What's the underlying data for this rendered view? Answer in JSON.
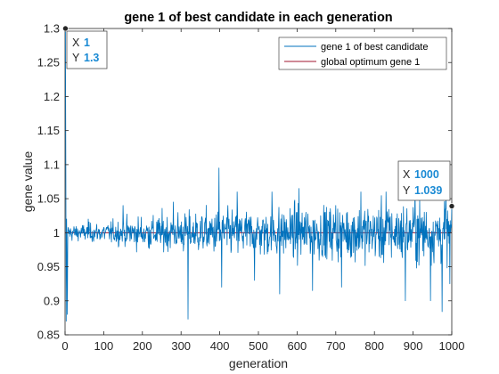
{
  "chart_data": {
    "type": "line",
    "title": "gene 1 of best candidate in each generation",
    "xlabel": "generation",
    "ylabel": "gene value",
    "xlim": [
      0,
      1000
    ],
    "ylim": [
      0.85,
      1.3
    ],
    "grid": false,
    "legend_position": "top-right",
    "x_ticks": [
      "0",
      "100",
      "200",
      "300",
      "400",
      "500",
      "600",
      "700",
      "800",
      "900",
      "1000"
    ],
    "y_ticks": [
      "0.85",
      "0.9",
      "0.95",
      "1",
      "1.05",
      "1.1",
      "1.15",
      "1.2",
      "1.25",
      "1.3"
    ],
    "series": [
      {
        "name": "gene 1 of best candidate",
        "color": "#0072bd",
        "x_range": [
          1,
          1000
        ],
        "noise_profile": {
          "start_transient": [
            1.3,
            1.1,
            0.87,
            1.02,
            0.96,
            0.88,
            1.0
          ],
          "spread_by_generation": [
            [
              0,
              0.012
            ],
            [
              100,
              0.015
            ],
            [
              200,
              0.025
            ],
            [
              300,
              0.03
            ],
            [
              400,
              0.035
            ],
            [
              500,
              0.035
            ],
            [
              600,
              0.04
            ],
            [
              700,
              0.04
            ],
            [
              800,
              0.045
            ],
            [
              1000,
              0.045
            ]
          ],
          "spikes": [
            [
              60,
              1.02
            ],
            [
              150,
              1.04
            ],
            [
              280,
              1.045
            ],
            [
              318,
              0.873
            ],
            [
              398,
              1.095
            ],
            [
              405,
              0.92
            ],
            [
              445,
              1.06
            ],
            [
              490,
              0.93
            ],
            [
              535,
              1.06
            ],
            [
              555,
              0.91
            ],
            [
              605,
              1.065
            ],
            [
              640,
              0.915
            ],
            [
              700,
              1.04
            ],
            [
              715,
              0.92
            ],
            [
              765,
              1.06
            ],
            [
              830,
              1.06
            ],
            [
              880,
              0.9
            ],
            [
              905,
              1.065
            ],
            [
              945,
              0.9
            ],
            [
              975,
              0.884
            ],
            [
              985,
              1.06
            ],
            [
              995,
              0.925
            ],
            [
              1000,
              1.039
            ]
          ]
        }
      },
      {
        "name": "global optimum gene 1",
        "color": "#a2142f",
        "values": [
          1,
          1
        ],
        "x": [
          0,
          1000
        ]
      }
    ],
    "datatips": [
      {
        "x_key": "X",
        "x_value": "1",
        "y_key": "Y",
        "y_value": "1.3",
        "point_x": 1,
        "point_y": 1.3
      },
      {
        "x_key": "X",
        "x_value": "1000",
        "y_key": "Y",
        "y_value": "1.039",
        "point_x": 1000,
        "point_y": 1.039
      }
    ]
  }
}
